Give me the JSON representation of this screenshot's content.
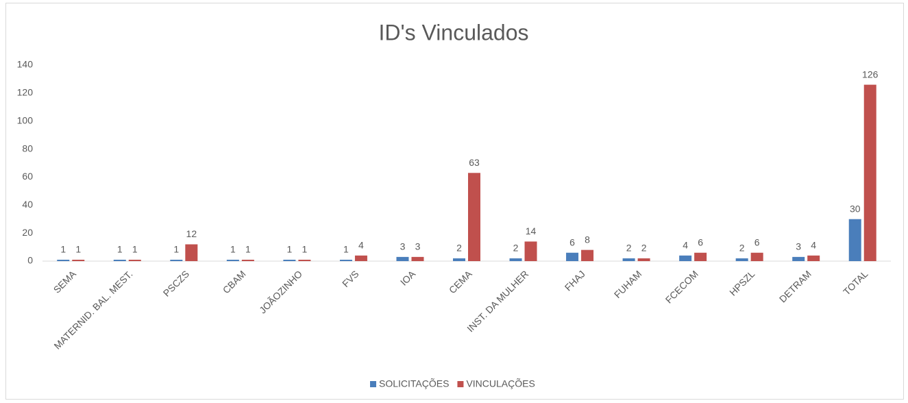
{
  "chart_data": {
    "type": "bar",
    "title": "ID's Vinculados",
    "categories": [
      "SEMA",
      "MATERNID. BAL. MEST.",
      "PSCZS",
      "CBAM",
      "JOÃOZINHO",
      "FVS",
      "IOA",
      "CEMA",
      "INST. DA MULHER",
      "FHAJ",
      "FUHAM",
      "FCECOM",
      "HPSZL",
      "DETRAM",
      "TOTAL"
    ],
    "series": [
      {
        "name": "SOLICITAÇÕES",
        "color": "#4a7ebb",
        "values": [
          1,
          1,
          1,
          1,
          1,
          1,
          3,
          2,
          2,
          6,
          2,
          4,
          2,
          3,
          30
        ]
      },
      {
        "name": "VINCULAÇÕES",
        "color": "#c0504d",
        "values": [
          1,
          1,
          12,
          1,
          1,
          4,
          3,
          63,
          14,
          8,
          2,
          6,
          6,
          4,
          126
        ]
      }
    ],
    "ylim": [
      0,
      140
    ],
    "yticks": [
      0,
      20,
      40,
      60,
      80,
      100,
      120,
      140
    ],
    "grid": false,
    "legend": "bottom"
  }
}
